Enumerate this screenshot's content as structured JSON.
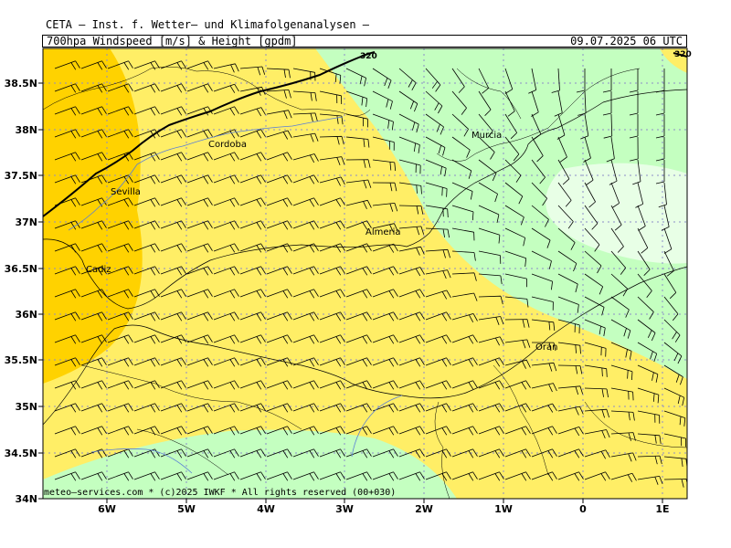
{
  "header": {
    "title": "CETA — Inst. f. Wetter— und Klimafolgenanalysen —",
    "product": "700hpa Windspeed [m/s] & Height [gpdm]",
    "valid_time": "09.07.2025 06 UTC"
  },
  "footer": {
    "credit": "meteo—services.com * (c)2025 IWKF * All rights reserved (00+030)"
  },
  "axes": {
    "lat_labels": [
      "38.5N",
      "38N",
      "37.5N",
      "37N",
      "36.5N",
      "36N",
      "35.5N",
      "35N",
      "34.5N",
      "34N"
    ],
    "lon_labels": [
      "6W",
      "5W",
      "4W",
      "3W",
      "2W",
      "1W",
      "0",
      "1E"
    ]
  },
  "cities": [
    {
      "name": "Cordoba"
    },
    {
      "name": "Sevilla"
    },
    {
      "name": "Murcia"
    },
    {
      "name": "Almeria"
    },
    {
      "name": "Cadiz"
    },
    {
      "name": "Oran"
    }
  ],
  "contours": [
    {
      "label": "320"
    },
    {
      "label": "320"
    }
  ],
  "colors": {
    "orange": "#ffd200",
    "yellow": "#ffee66",
    "light_green": "#c4ffc0",
    "pale_green": "#e8ffe6",
    "gridline": "#8c8cc8",
    "coast": "#000000",
    "river": "#5a7fd6"
  }
}
